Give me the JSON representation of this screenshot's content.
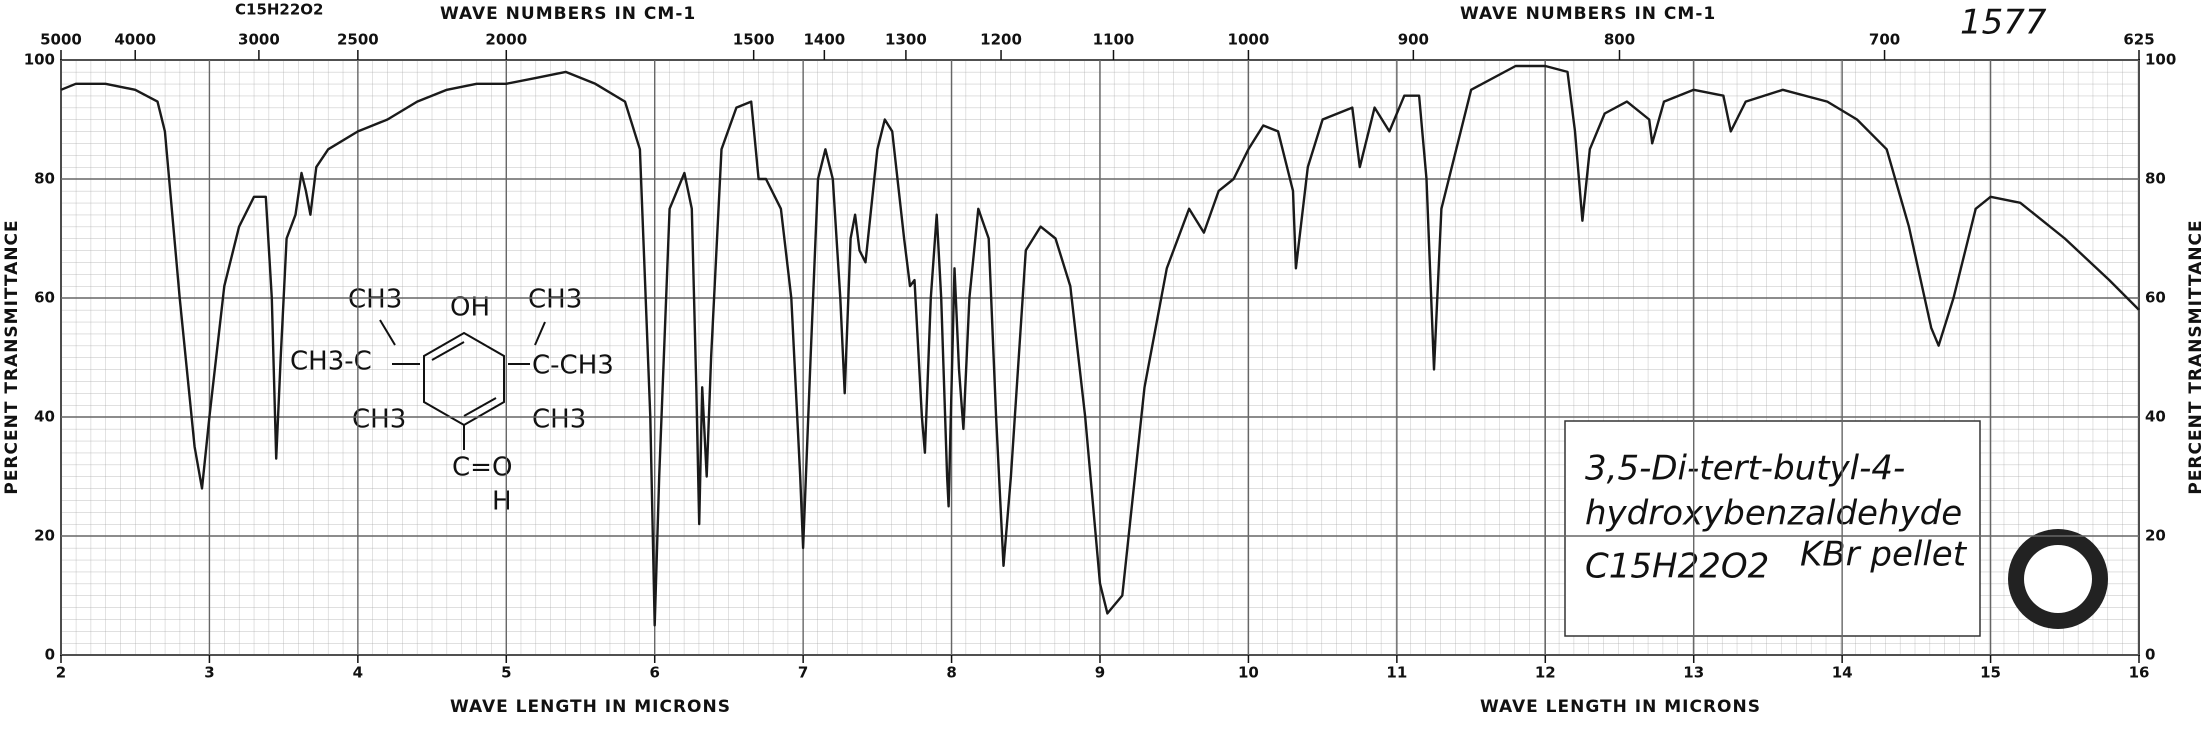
{
  "chart_data": {
    "type": "line",
    "top_label": "1577",
    "top_formula": "C15H22O2",
    "x2_label": "WAVE NUMBERS IN CM-1",
    "x2_label_right": "WAVE NUMBERS IN CM-1",
    "x_label": "WAVE LENGTH IN MICRONS",
    "x_label_right": "WAVE LENGTH IN MICRONS",
    "y_label": "PERCENT TRANSMITTANCE",
    "y_label_right": "PERCENT TRANSMITTANCE",
    "compound": [
      "3,5-Di-tert-butyl-4-",
      "hydroxybenzaldehyde"
    ],
    "formula": "C15H22O2",
    "sample": "KBr pellet",
    "structure_labels": [
      "CH3",
      "OH",
      "CH3",
      "CH3-C",
      "C-CH3",
      "CH3",
      "CH3",
      "C=O",
      "H"
    ],
    "xlim": [
      2,
      16
    ],
    "xticks": [
      2,
      3,
      4,
      5,
      6,
      7,
      8,
      9,
      10,
      11,
      12,
      13,
      14,
      15,
      16
    ],
    "x2ticks": [
      5000,
      4000,
      3000,
      2500,
      2000,
      1500,
      1400,
      1300,
      1200,
      1100,
      1000,
      900,
      800,
      700,
      625
    ],
    "ylim": [
      0,
      100
    ],
    "yticks": [
      0,
      20,
      40,
      60,
      80,
      100
    ],
    "grid": true,
    "x": [
      2.0,
      2.1,
      2.3,
      2.5,
      2.65,
      2.7,
      2.8,
      2.9,
      2.95,
      3.0,
      3.1,
      3.2,
      3.3,
      3.38,
      3.42,
      3.45,
      3.48,
      3.52,
      3.58,
      3.62,
      3.65,
      3.68,
      3.72,
      3.8,
      4.0,
      4.2,
      4.4,
      4.6,
      4.8,
      5.0,
      5.2,
      5.4,
      5.6,
      5.8,
      5.9,
      5.97,
      6.0,
      6.03,
      6.1,
      6.2,
      6.25,
      6.28,
      6.3,
      6.32,
      6.35,
      6.38,
      6.45,
      6.55,
      6.65,
      6.7,
      6.75,
      6.85,
      6.92,
      6.98,
      7.0,
      7.05,
      7.1,
      7.15,
      7.2,
      7.25,
      7.28,
      7.32,
      7.35,
      7.38,
      7.42,
      7.5,
      7.55,
      7.6,
      7.68,
      7.72,
      7.75,
      7.8,
      7.82,
      7.86,
      7.9,
      7.93,
      7.97,
      7.98,
      8.02,
      8.05,
      8.08,
      8.12,
      8.18,
      8.25,
      8.3,
      8.35,
      8.4,
      8.5,
      8.6,
      8.7,
      8.8,
      8.9,
      9.0,
      9.05,
      9.15,
      9.3,
      9.45,
      9.6,
      9.7,
      9.8,
      9.9,
      10.0,
      10.1,
      10.2,
      10.3,
      10.32,
      10.4,
      10.5,
      10.7,
      10.75,
      10.85,
      10.95,
      11.05,
      11.15,
      11.2,
      11.25,
      11.3,
      11.5,
      11.8,
      12.0,
      12.15,
      12.2,
      12.25,
      12.3,
      12.4,
      12.55,
      12.7,
      12.72,
      12.8,
      13.0,
      13.2,
      13.25,
      13.35,
      13.6,
      13.9,
      14.1,
      14.3,
      14.45,
      14.6,
      14.65,
      14.75,
      14.9,
      15.0,
      15.2,
      15.5,
      15.8,
      16.0
    ],
    "series": [
      {
        "color": "#1a1a1a",
        "values": [
          95,
          96,
          96,
          95,
          93,
          88,
          60,
          35,
          28,
          40,
          62,
          72,
          77,
          77,
          60,
          33,
          50,
          70,
          74,
          81,
          78,
          74,
          82,
          85,
          88,
          90,
          93,
          95,
          96,
          96,
          97,
          98,
          96,
          93,
          85,
          40,
          5,
          30,
          75,
          81,
          75,
          45,
          22,
          45,
          30,
          50,
          85,
          92,
          93,
          80,
          80,
          75,
          60,
          30,
          18,
          50,
          80,
          85,
          80,
          60,
          44,
          70,
          74,
          68,
          66,
          85,
          90,
          88,
          70,
          62,
          63,
          40,
          34,
          60,
          74,
          60,
          30,
          25,
          65,
          48,
          38,
          60,
          75,
          70,
          40,
          15,
          30,
          68,
          72,
          70,
          62,
          40,
          12,
          7,
          10,
          45,
          65,
          75,
          71,
          78,
          80,
          85,
          89,
          88,
          78,
          65,
          82,
          90,
          92,
          82,
          92,
          88,
          94,
          94,
          80,
          48,
          75,
          95,
          99,
          99,
          98,
          88,
          73,
          85,
          91,
          93,
          90,
          86,
          93,
          95,
          94,
          88,
          93,
          95,
          93,
          90,
          85,
          72,
          55,
          52,
          60,
          75,
          77,
          76,
          70,
          63,
          58
        ]
      }
    ]
  }
}
